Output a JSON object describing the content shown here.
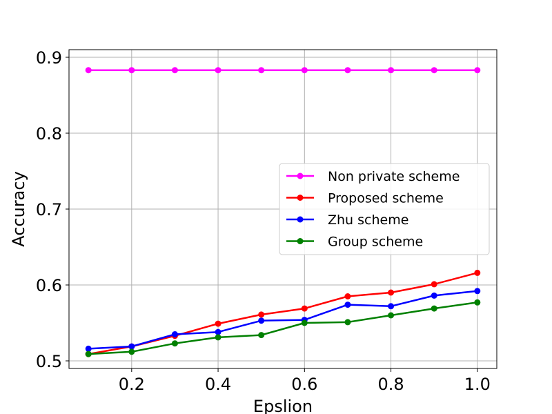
{
  "chart_data": {
    "type": "line",
    "title": "",
    "xlabel": "Epslion",
    "ylabel": "Accuracy",
    "xlim": [
      0.055,
      1.045
    ],
    "ylim": [
      0.49,
      0.91
    ],
    "xticks": [
      0.2,
      0.4,
      0.6,
      0.8,
      1.0
    ],
    "xtick_labels": [
      "0.2",
      "0.4",
      "0.6",
      "0.8",
      "1.0"
    ],
    "yticks": [
      0.5,
      0.6,
      0.7,
      0.8,
      0.9
    ],
    "ytick_labels": [
      "0.5",
      "0.6",
      "0.7",
      "0.8",
      "0.9"
    ],
    "grid": true,
    "legend_position": "center-right",
    "x": [
      0.1,
      0.2,
      0.3,
      0.4,
      0.5,
      0.6,
      0.7,
      0.8,
      0.9,
      1.0
    ],
    "series": [
      {
        "name": "Non private scheme",
        "color": "#ff00ff",
        "values": [
          0.883,
          0.883,
          0.883,
          0.883,
          0.883,
          0.883,
          0.883,
          0.883,
          0.883,
          0.883
        ]
      },
      {
        "name": "Proposed scheme",
        "color": "#ff0000",
        "values": [
          0.509,
          0.519,
          0.533,
          0.549,
          0.561,
          0.569,
          0.585,
          0.59,
          0.601,
          0.616
        ]
      },
      {
        "name": "Zhu scheme",
        "color": "#0000ff",
        "values": [
          0.516,
          0.519,
          0.535,
          0.538,
          0.553,
          0.554,
          0.574,
          0.572,
          0.586,
          0.592
        ]
      },
      {
        "name": "Group scheme",
        "color": "#008000",
        "values": [
          0.509,
          0.512,
          0.523,
          0.531,
          0.534,
          0.55,
          0.551,
          0.56,
          0.569,
          0.577
        ]
      }
    ]
  }
}
